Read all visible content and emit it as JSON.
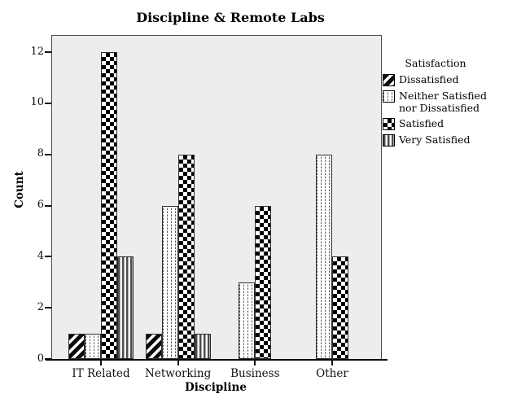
{
  "chart_data": {
    "type": "bar",
    "title": "Discipline & Remote Labs",
    "xlabel": "Discipline",
    "ylabel": "Count",
    "legend_title": "Satisfaction",
    "legend_position": "right",
    "grid": false,
    "categories": [
      "IT Related",
      "Networking",
      "Business",
      "Other"
    ],
    "series": [
      {
        "name": "Dissatisfied",
        "pattern": "diagonal-hatch",
        "values": [
          1,
          1,
          0,
          0
        ]
      },
      {
        "name": "Neither Satisfied nor Dissatisfied",
        "pattern": "dotted-dash",
        "values": [
          1,
          6,
          3,
          8
        ]
      },
      {
        "name": "Satisfied",
        "pattern": "checkerboard",
        "values": [
          12,
          8,
          6,
          4
        ]
      },
      {
        "name": "Very Satisfied",
        "pattern": "vertical-stripes",
        "values": [
          4,
          1,
          0,
          0
        ]
      }
    ],
    "y_ticks": [
      0,
      2,
      4,
      6,
      8,
      10,
      12
    ],
    "ylim": [
      0,
      12.64
    ],
    "colors": {
      "plot_background": "#ededed",
      "figure_background": "#ffffff",
      "bar_fill": "#ffffff",
      "pattern_ink": "#000000",
      "axis": "#000000"
    }
  }
}
